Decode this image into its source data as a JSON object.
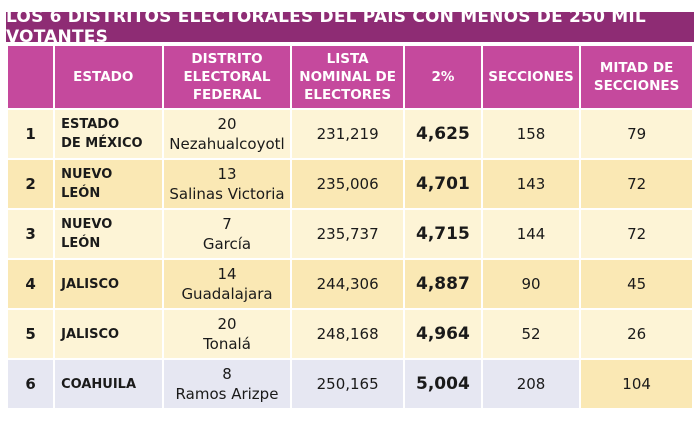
{
  "title": "LOS 6 DISTRITOS ELECTORALES DEL PAÍS CON MENOS DE 250 MIL VOTANTES",
  "headers": {
    "num": "",
    "estado": "ESTADO",
    "distrito": [
      "DISTRITO",
      "ELECTORAL",
      "FEDERAL"
    ],
    "lista": [
      "LISTA",
      "NOMINAL DE",
      "ELECTORES"
    ],
    "pct": "2%",
    "secciones": "SECCIONES",
    "mitad": [
      "MITAD DE",
      "SECCIONES"
    ]
  },
  "rows": [
    {
      "num": "1",
      "estado": [
        "ESTADO",
        "DE MÉXICO"
      ],
      "distrito_num": "20",
      "distrito_name": "Nezahualcoyotl",
      "lista": "231,219",
      "pct": "4,625",
      "secciones": "158",
      "mitad": "79"
    },
    {
      "num": "2",
      "estado": [
        "NUEVO",
        "LEÓN"
      ],
      "distrito_num": "13",
      "distrito_name": "Salinas Victoria",
      "lista": "235,006",
      "pct": "4,701",
      "secciones": "143",
      "mitad": "72"
    },
    {
      "num": "3",
      "estado": [
        "NUEVO",
        "LEÓN"
      ],
      "distrito_num": "7",
      "distrito_name": "García",
      "lista": "235,737",
      "pct": "4,715",
      "secciones": "144",
      "mitad": "72"
    },
    {
      "num": "4",
      "estado": [
        "JALISCO"
      ],
      "distrito_num": "14",
      "distrito_name": "Guadalajara",
      "lista": "244,306",
      "pct": "4,887",
      "secciones": "90",
      "mitad": "45"
    },
    {
      "num": "5",
      "estado": [
        "JALISCO"
      ],
      "distrito_num": "20",
      "distrito_name": "Tonalá",
      "lista": "248,168",
      "pct": "4,964",
      "secciones": "52",
      "mitad": "26"
    },
    {
      "num": "6",
      "estado": [
        "COAHUILA"
      ],
      "distrito_num": "8",
      "distrito_name": "Ramos Arizpe",
      "lista": "250,165",
      "pct": "5,004",
      "secciones": "208",
      "mitad": "104"
    }
  ]
}
